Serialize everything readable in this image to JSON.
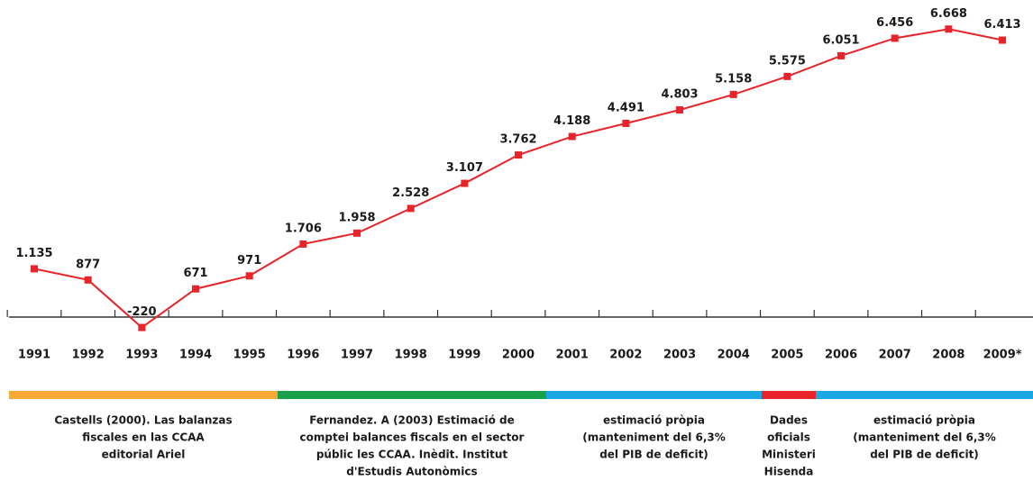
{
  "chart_data": {
    "type": "line",
    "categories": [
      "1991",
      "1992",
      "1993",
      "1994",
      "1995",
      "1996",
      "1997",
      "1998",
      "1999",
      "2000",
      "2001",
      "2002",
      "2003",
      "2004",
      "2005",
      "2006",
      "2007",
      "2008",
      "2009*"
    ],
    "series": [
      {
        "color": "#e8232a",
        "values": [
          1135,
          877,
          -220,
          671,
          971,
          1706,
          1958,
          2528,
          3107,
          3762,
          4188,
          4491,
          4803,
          5158,
          5575,
          6051,
          6456,
          6668,
          6413
        ],
        "value_labels": [
          "1.135",
          "877",
          "-220",
          "671",
          "971",
          "1.706",
          "1.958",
          "2.528",
          "3.107",
          "3.762",
          "4.188",
          "4.491",
          "4.803",
          "5.158",
          "5.575",
          "6.051",
          "6.456",
          "6.668",
          "6.413"
        ]
      }
    ],
    "sources": [
      {
        "color": "#f7a934",
        "lines": [
          "Castells (2000). Las balanzas",
          "fiscales en las CCAA",
          "editorial Ariel"
        ]
      },
      {
        "color": "#18a14a",
        "lines": [
          "Fernandez. A (2003) Estimació de",
          "comptei balances fiscals en el sector",
          "públic les CCAA. Inèdit. Institut",
          "d'Estudis Autonòmics"
        ]
      },
      {
        "color": "#1ba7e6",
        "lines": [
          "estimació pròpia",
          "(manteniment del 6,3%",
          "del PIB de deficit)"
        ]
      },
      {
        "color": "#e8232a",
        "lines": [
          "Dades",
          "oficials",
          "Ministeri",
          "Hisenda"
        ]
      },
      {
        "color": "#1ba7e6",
        "lines": [
          "estimació pròpia",
          "(manteniment del 6,3%",
          "del PIB de deficit)"
        ]
      }
    ]
  }
}
